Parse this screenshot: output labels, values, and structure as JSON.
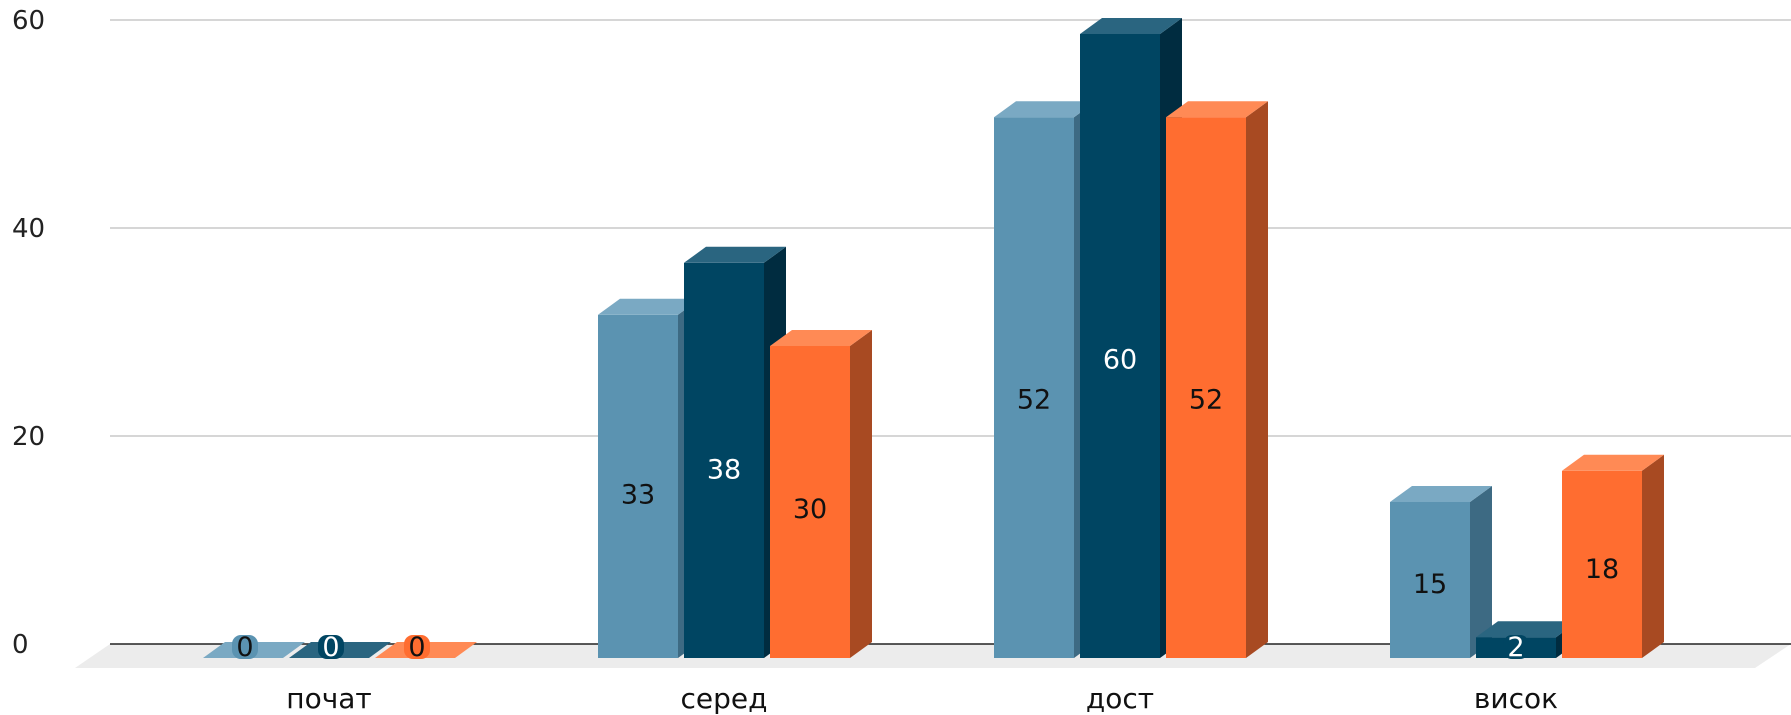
{
  "chart_data": {
    "type": "bar",
    "style": "3d-clustered-column",
    "categories": [
      "почат",
      "серед",
      "дост",
      "висок"
    ],
    "series": [
      {
        "values": [
          0,
          33,
          52,
          15
        ],
        "color": "#5b93b1",
        "side_color": "#3d6a83",
        "top_color": "#7aa9c3",
        "label_color": "#111111"
      },
      {
        "values": [
          0,
          38,
          60,
          2
        ],
        "color": "#004562",
        "side_color": "#002c40",
        "top_color": "#2a6580",
        "label_color": "#ffffff"
      },
      {
        "values": [
          0,
          30,
          52,
          18
        ],
        "color": "#ff6d30",
        "side_color": "#a84a22",
        "top_color": "#ff8a55",
        "label_color": "#111111"
      }
    ],
    "y_ticks": [
      "0",
      "20",
      "40",
      "60"
    ],
    "ylim": [
      0,
      60
    ],
    "grid": true,
    "legend": "none",
    "title": "",
    "xlabel": "",
    "ylabel": ""
  }
}
